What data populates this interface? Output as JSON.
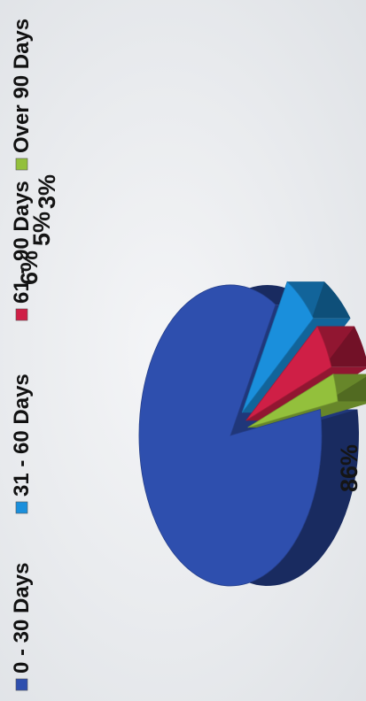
{
  "chart_data": {
    "type": "pie",
    "title": "",
    "categories": [
      "0 - 30 Days",
      "31 - 60 Days",
      "61 - 90 Days",
      "Over 90 Days"
    ],
    "values": [
      86,
      6,
      5,
      3
    ],
    "data_labels": [
      "86%",
      "6%",
      "5%",
      "3%"
    ],
    "colors": [
      "#2e4fae",
      "#1a8fdc",
      "#cf1f46",
      "#93c03c"
    ],
    "exploded": [
      false,
      true,
      true,
      true
    ],
    "style": "3d",
    "legend_position": "top",
    "orientation": "rotated-90-ccw"
  }
}
